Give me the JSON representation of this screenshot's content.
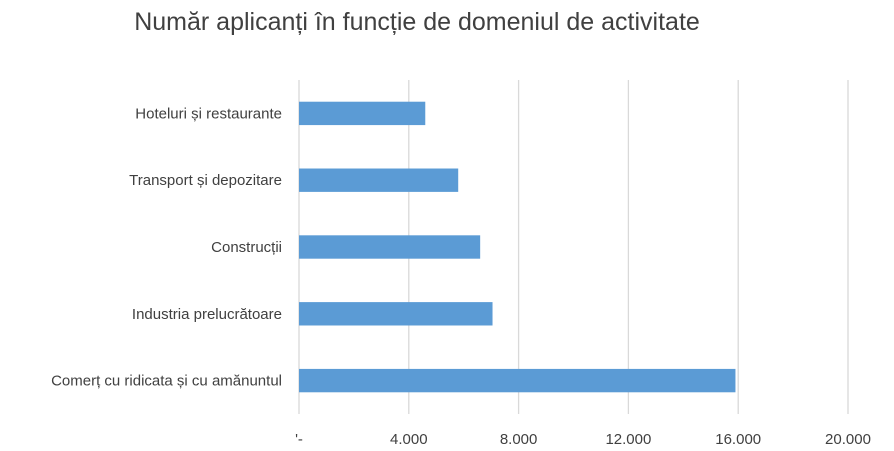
{
  "chart_data": {
    "type": "bar",
    "orientation": "horizontal",
    "title": "Număr aplicanți în funcție de domeniul de activitate",
    "categories": [
      "Hoteluri și restaurante",
      "Transport și depozitare",
      "Construcții",
      "Industria prelucrătoare",
      "Comerț cu ridicata și cu amănuntul"
    ],
    "values": [
      4600,
      5800,
      6600,
      7050,
      15900
    ],
    "xlim": [
      0,
      20000
    ],
    "x_ticks": [
      0,
      4000,
      8000,
      12000,
      16000,
      20000
    ],
    "x_tick_labels": [
      "'-",
      "4.000",
      "8.000",
      "12.000",
      "16.000",
      "20.000"
    ],
    "grid": "vertical",
    "legend": "none",
    "bar_color": "#5b9bd5",
    "grid_color": "#d9d9d9"
  }
}
